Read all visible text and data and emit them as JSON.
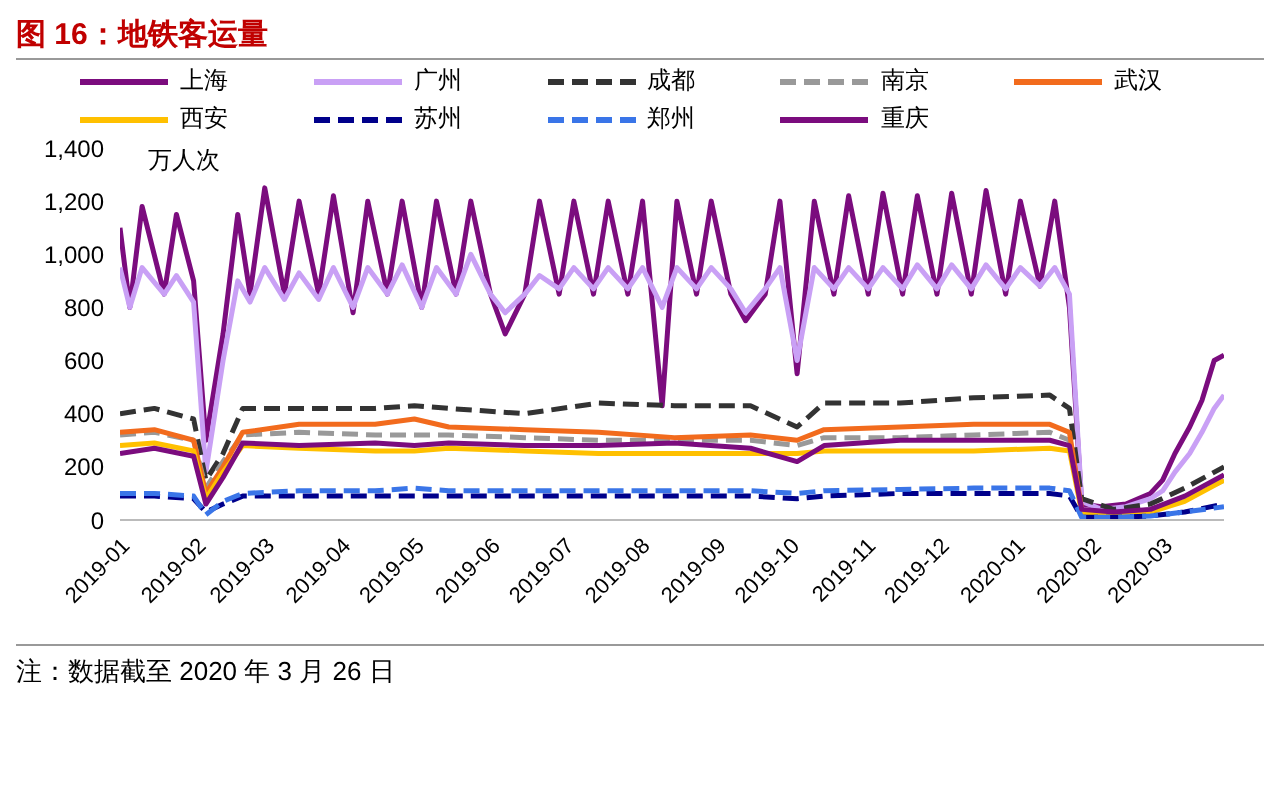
{
  "chart_data": {
    "type": "line",
    "title": "图 16：地铁客运量",
    "ylabel": "万人次",
    "annotations": [
      "注：数据截至 2020 年 3 月 26 日"
    ],
    "x": [
      "2019-01-01",
      "2019-01-05",
      "2019-01-10",
      "2019-01-19",
      "2019-01-24",
      "2019-01-31",
      "2019-02-05",
      "2019-02-12",
      "2019-02-18",
      "2019-02-23",
      "2019-03-01",
      "2019-03-09",
      "2019-03-15",
      "2019-03-23",
      "2019-03-29",
      "2019-04-06",
      "2019-04-12",
      "2019-04-20",
      "2019-04-26",
      "2019-05-04",
      "2019-05-10",
      "2019-05-18",
      "2019-05-24",
      "2019-06-01",
      "2019-06-07",
      "2019-06-15",
      "2019-06-21",
      "2019-06-29",
      "2019-07-05",
      "2019-07-13",
      "2019-07-19",
      "2019-07-27",
      "2019-08-02",
      "2019-08-10",
      "2019-08-16",
      "2019-08-24",
      "2019-08-30",
      "2019-09-07",
      "2019-09-13",
      "2019-09-21",
      "2019-09-27",
      "2019-10-04",
      "2019-10-11",
      "2019-10-19",
      "2019-10-25",
      "2019-11-02",
      "2019-11-08",
      "2019-11-16",
      "2019-11-22",
      "2019-11-30",
      "2019-12-06",
      "2019-12-14",
      "2019-12-20",
      "2019-12-28",
      "2020-01-03",
      "2020-01-11",
      "2020-01-17",
      "2020-01-23",
      "2020-01-28",
      "2020-02-05",
      "2020-02-15",
      "2020-02-25",
      "2020-03-01",
      "2020-03-06",
      "2020-03-12",
      "2020-03-17",
      "2020-03-22",
      "2020-03-26"
    ],
    "series": [
      {
        "name": "上海",
        "color": "#7b0c7e",
        "line_style": "solid",
        "values": [
          1100,
          800,
          1180,
          850,
          1150,
          900,
          300,
          700,
          1150,
          850,
          1250,
          850,
          1200,
          850,
          1220,
          780,
          1200,
          850,
          1200,
          800,
          1200,
          850,
          1200,
          850,
          700,
          850,
          1200,
          850,
          1200,
          850,
          1200,
          850,
          1200,
          430,
          1200,
          850,
          1200,
          850,
          750,
          850,
          1200,
          550,
          1200,
          850,
          1220,
          850,
          1230,
          850,
          1220,
          850,
          1230,
          850,
          1240,
          850,
          1200,
          880,
          1200,
          800,
          60,
          50,
          60,
          100,
          150,
          250,
          350,
          450,
          600,
          620
        ]
      },
      {
        "name": "广州",
        "color": "#c9a0f5",
        "line_style": "solid",
        "values": [
          950,
          800,
          950,
          850,
          920,
          820,
          180,
          600,
          900,
          820,
          950,
          830,
          930,
          830,
          950,
          800,
          950,
          850,
          960,
          800,
          950,
          850,
          1000,
          850,
          780,
          850,
          920,
          870,
          950,
          870,
          950,
          870,
          950,
          800,
          950,
          870,
          950,
          870,
          780,
          870,
          950,
          600,
          950,
          870,
          950,
          870,
          950,
          870,
          960,
          870,
          960,
          870,
          960,
          870,
          950,
          880,
          950,
          850,
          70,
          40,
          50,
          80,
          110,
          180,
          250,
          330,
          420,
          470
        ]
      },
      {
        "name": "成都",
        "color": "#333333",
        "line_style": "dashed",
        "x": [
          "2019-01-01",
          "2019-01-15",
          "2019-01-31",
          "2019-02-05",
          "2019-02-12",
          "2019-02-20",
          "2019-03-15",
          "2019-04-15",
          "2019-05-01",
          "2019-05-15",
          "2019-06-15",
          "2019-07-15",
          "2019-08-15",
          "2019-09-15",
          "2019-10-04",
          "2019-10-15",
          "2019-11-15",
          "2019-12-15",
          "2020-01-15",
          "2020-01-23",
          "2020-01-28",
          "2020-02-10",
          "2020-02-25",
          "2020-03-10",
          "2020-03-26"
        ],
        "values": [
          400,
          420,
          380,
          150,
          250,
          420,
          420,
          420,
          430,
          420,
          400,
          440,
          430,
          430,
          350,
          440,
          440,
          460,
          470,
          420,
          80,
          40,
          60,
          120,
          200
        ]
      },
      {
        "name": "南京",
        "color": "#999999",
        "line_style": "dashed",
        "x": [
          "2019-01-01",
          "2019-01-15",
          "2019-01-31",
          "2019-02-05",
          "2019-02-12",
          "2019-02-20",
          "2019-03-15",
          "2019-04-15",
          "2019-05-01",
          "2019-05-15",
          "2019-06-15",
          "2019-07-15",
          "2019-08-15",
          "2019-09-15",
          "2019-10-04",
          "2019-10-15",
          "2019-11-15",
          "2019-12-15",
          "2020-01-15",
          "2020-01-23",
          "2020-01-28",
          "2020-02-10",
          "2020-02-25",
          "2020-03-10",
          "2020-03-26"
        ],
        "values": [
          320,
          330,
          300,
          120,
          220,
          320,
          330,
          320,
          320,
          320,
          310,
          300,
          300,
          300,
          280,
          310,
          310,
          320,
          330,
          300,
          30,
          20,
          40,
          80,
          150
        ]
      },
      {
        "name": "武汉",
        "color": "#f26b1d",
        "line_style": "solid",
        "x": [
          "2019-01-01",
          "2019-01-15",
          "2019-01-31",
          "2019-02-05",
          "2019-02-12",
          "2019-02-20",
          "2019-03-15",
          "2019-04-15",
          "2019-05-01",
          "2019-05-15",
          "2019-06-15",
          "2019-07-15",
          "2019-08-15",
          "2019-09-15",
          "2019-10-04",
          "2019-10-15",
          "2019-11-15",
          "2019-12-15",
          "2020-01-15",
          "2020-01-23",
          "2020-01-28"
        ],
        "values": [
          330,
          340,
          300,
          100,
          200,
          330,
          360,
          360,
          380,
          350,
          340,
          330,
          310,
          320,
          300,
          340,
          350,
          360,
          360,
          330,
          40
        ]
      },
      {
        "name": "西安",
        "color": "#ffc000",
        "line_style": "solid",
        "x": [
          "2019-01-01",
          "2019-01-15",
          "2019-01-31",
          "2019-02-05",
          "2019-02-12",
          "2019-02-20",
          "2019-03-15",
          "2019-04-15",
          "2019-05-01",
          "2019-05-15",
          "2019-06-15",
          "2019-07-15",
          "2019-08-15",
          "2019-09-15",
          "2019-10-04",
          "2019-10-15",
          "2019-11-15",
          "2019-12-15",
          "2020-01-15",
          "2020-01-23",
          "2020-01-28",
          "2020-02-10",
          "2020-02-25",
          "2020-03-10",
          "2020-03-26"
        ],
        "values": [
          280,
          290,
          260,
          80,
          180,
          280,
          270,
          260,
          260,
          270,
          260,
          250,
          250,
          250,
          250,
          260,
          260,
          260,
          270,
          260,
          30,
          20,
          30,
          70,
          150
        ]
      },
      {
        "name": "苏州",
        "color": "#00008b",
        "line_style": "dashed",
        "x": [
          "2019-01-01",
          "2019-01-15",
          "2019-01-31",
          "2019-02-05",
          "2019-02-12",
          "2019-02-20",
          "2019-03-15",
          "2019-04-15",
          "2019-05-01",
          "2019-05-15",
          "2019-06-15",
          "2019-07-15",
          "2019-08-15",
          "2019-09-15",
          "2019-10-04",
          "2019-10-15",
          "2019-11-15",
          "2019-12-15",
          "2020-01-15",
          "2020-01-23",
          "2020-01-28",
          "2020-02-10",
          "2020-02-25",
          "2020-03-10",
          "2020-03-26"
        ],
        "values": [
          90,
          90,
          80,
          30,
          60,
          90,
          90,
          90,
          90,
          90,
          90,
          90,
          90,
          90,
          80,
          90,
          100,
          100,
          100,
          90,
          10,
          10,
          15,
          30,
          60
        ]
      },
      {
        "name": "郑州",
        "color": "#3a75e8",
        "line_style": "dashed",
        "x": [
          "2019-01-01",
          "2019-01-15",
          "2019-01-31",
          "2019-02-05",
          "2019-02-12",
          "2019-02-20",
          "2019-03-15",
          "2019-04-15",
          "2019-05-01",
          "2019-05-15",
          "2019-06-15",
          "2019-07-15",
          "2019-08-15",
          "2019-09-15",
          "2019-10-04",
          "2019-10-15",
          "2019-11-15",
          "2019-12-15",
          "2020-01-15",
          "2020-01-23",
          "2020-01-28",
          "2020-02-10",
          "2020-02-25",
          "2020-03-10",
          "2020-03-26"
        ],
        "values": [
          100,
          100,
          90,
          20,
          70,
          100,
          110,
          110,
          120,
          110,
          110,
          110,
          110,
          110,
          100,
          110,
          115,
          120,
          120,
          110,
          10,
          10,
          15,
          30,
          50
        ]
      },
      {
        "name": "重庆",
        "color": "#7b0c7e",
        "line_style": "solid",
        "x": [
          "2019-01-01",
          "2019-01-15",
          "2019-01-31",
          "2019-02-05",
          "2019-02-12",
          "2019-02-20",
          "2019-03-15",
          "2019-04-15",
          "2019-05-01",
          "2019-05-15",
          "2019-06-15",
          "2019-07-15",
          "2019-08-15",
          "2019-09-15",
          "2019-10-04",
          "2019-10-15",
          "2019-11-15",
          "2019-12-15",
          "2020-01-15",
          "2020-01-23",
          "2020-01-28",
          "2020-02-10",
          "2020-02-25",
          "2020-03-10",
          "2020-03-26"
        ],
        "values": [
          250,
          270,
          240,
          60,
          160,
          290,
          280,
          290,
          280,
          290,
          280,
          280,
          290,
          270,
          220,
          280,
          300,
          300,
          300,
          280,
          40,
          30,
          40,
          90,
          170
        ]
      }
    ],
    "xlim": [
      "2019-01-01",
      "2020-03-26"
    ],
    "xticks": [
      "2019-01",
      "2019-02",
      "2019-03",
      "2019-04",
      "2019-05",
      "2019-06",
      "2019-07",
      "2019-08",
      "2019-09",
      "2019-10",
      "2019-11",
      "2019-12",
      "2020-01",
      "2020-02",
      "2020-03"
    ],
    "ylim": [
      0,
      1400
    ],
    "yticks": [
      0,
      200,
      400,
      600,
      800,
      {
        "value": 1000,
        "label": "1,000"
      },
      {
        "value": 1200,
        "label": "1,200"
      },
      {
        "value": 1400,
        "label": "1,400"
      }
    ],
    "grid": false,
    "legend": "top",
    "marker": "none"
  }
}
